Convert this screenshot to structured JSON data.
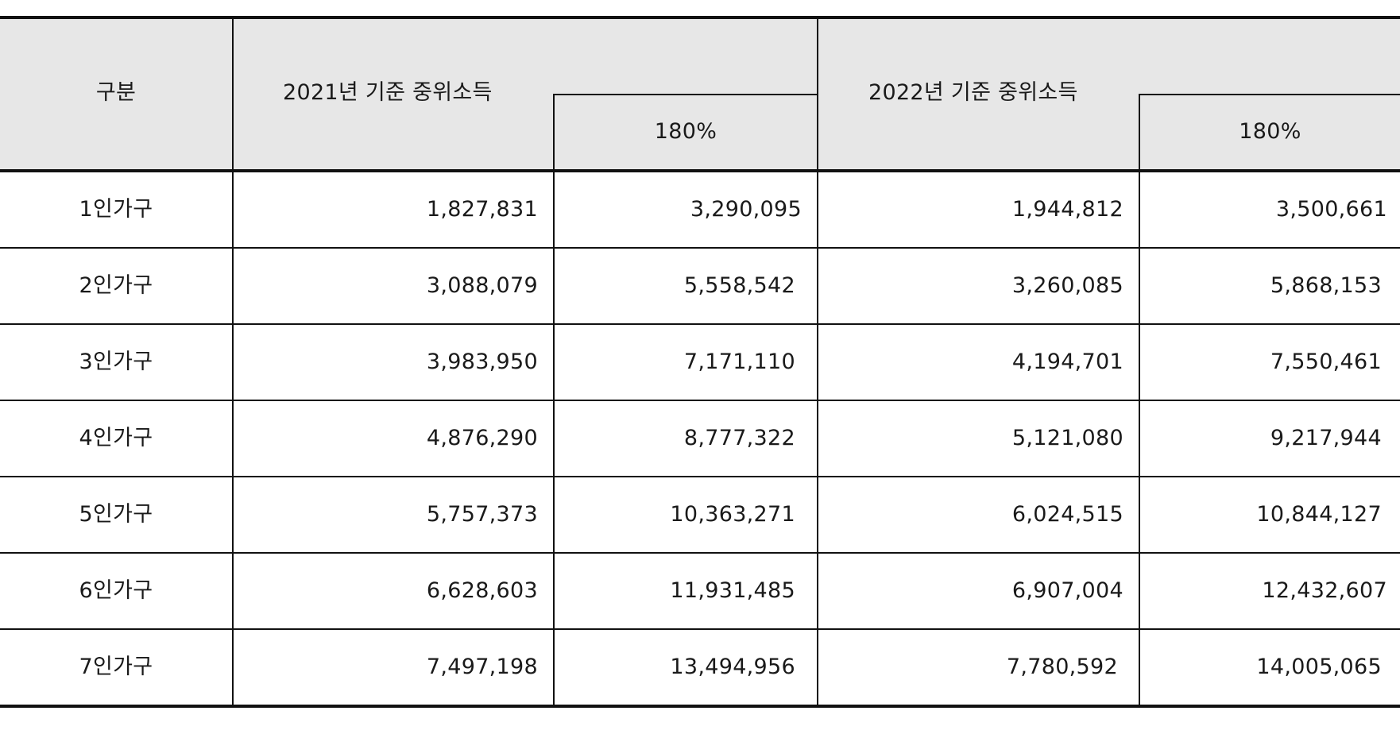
{
  "table": {
    "header": {
      "category": "구분",
      "year2021": "2021년 기준 중위소득",
      "pct2021": "180%",
      "year2022": "2022년 기준 중위소득",
      "pct2022": "180%"
    },
    "rows": [
      {
        "label": "1인가구",
        "v2021": "1,827,831",
        "p2021": "3,290,095",
        "v2022": "1,944,812",
        "p2022": "3,500,661"
      },
      {
        "label": "2인가구",
        "v2021": "3,088,079",
        "p2021": "5,558,542",
        "v2022": "3,260,085",
        "p2022": "5,868,153"
      },
      {
        "label": "3인가구",
        "v2021": "3,983,950",
        "p2021": "7,171,110",
        "v2022": "4,194,701",
        "p2022": "7,550,461"
      },
      {
        "label": "4인가구",
        "v2021": "4,876,290",
        "p2021": "8,777,322",
        "v2022": "5,121,080",
        "p2022": "9,217,944"
      },
      {
        "label": "5인가구",
        "v2021": "5,757,373",
        "p2021": "10,363,271",
        "v2022": "6,024,515",
        "p2022": "10,844,127"
      },
      {
        "label": "6인가구",
        "v2021": "6,628,603",
        "p2021": "11,931,485",
        "v2022": "6,907,004",
        "p2022": "12,432,607"
      },
      {
        "label": "7인가구",
        "v2021": "7,497,198",
        "p2021": "13,494,956",
        "v2022": "7,780,592",
        "p2022": "14,005,065"
      }
    ]
  }
}
